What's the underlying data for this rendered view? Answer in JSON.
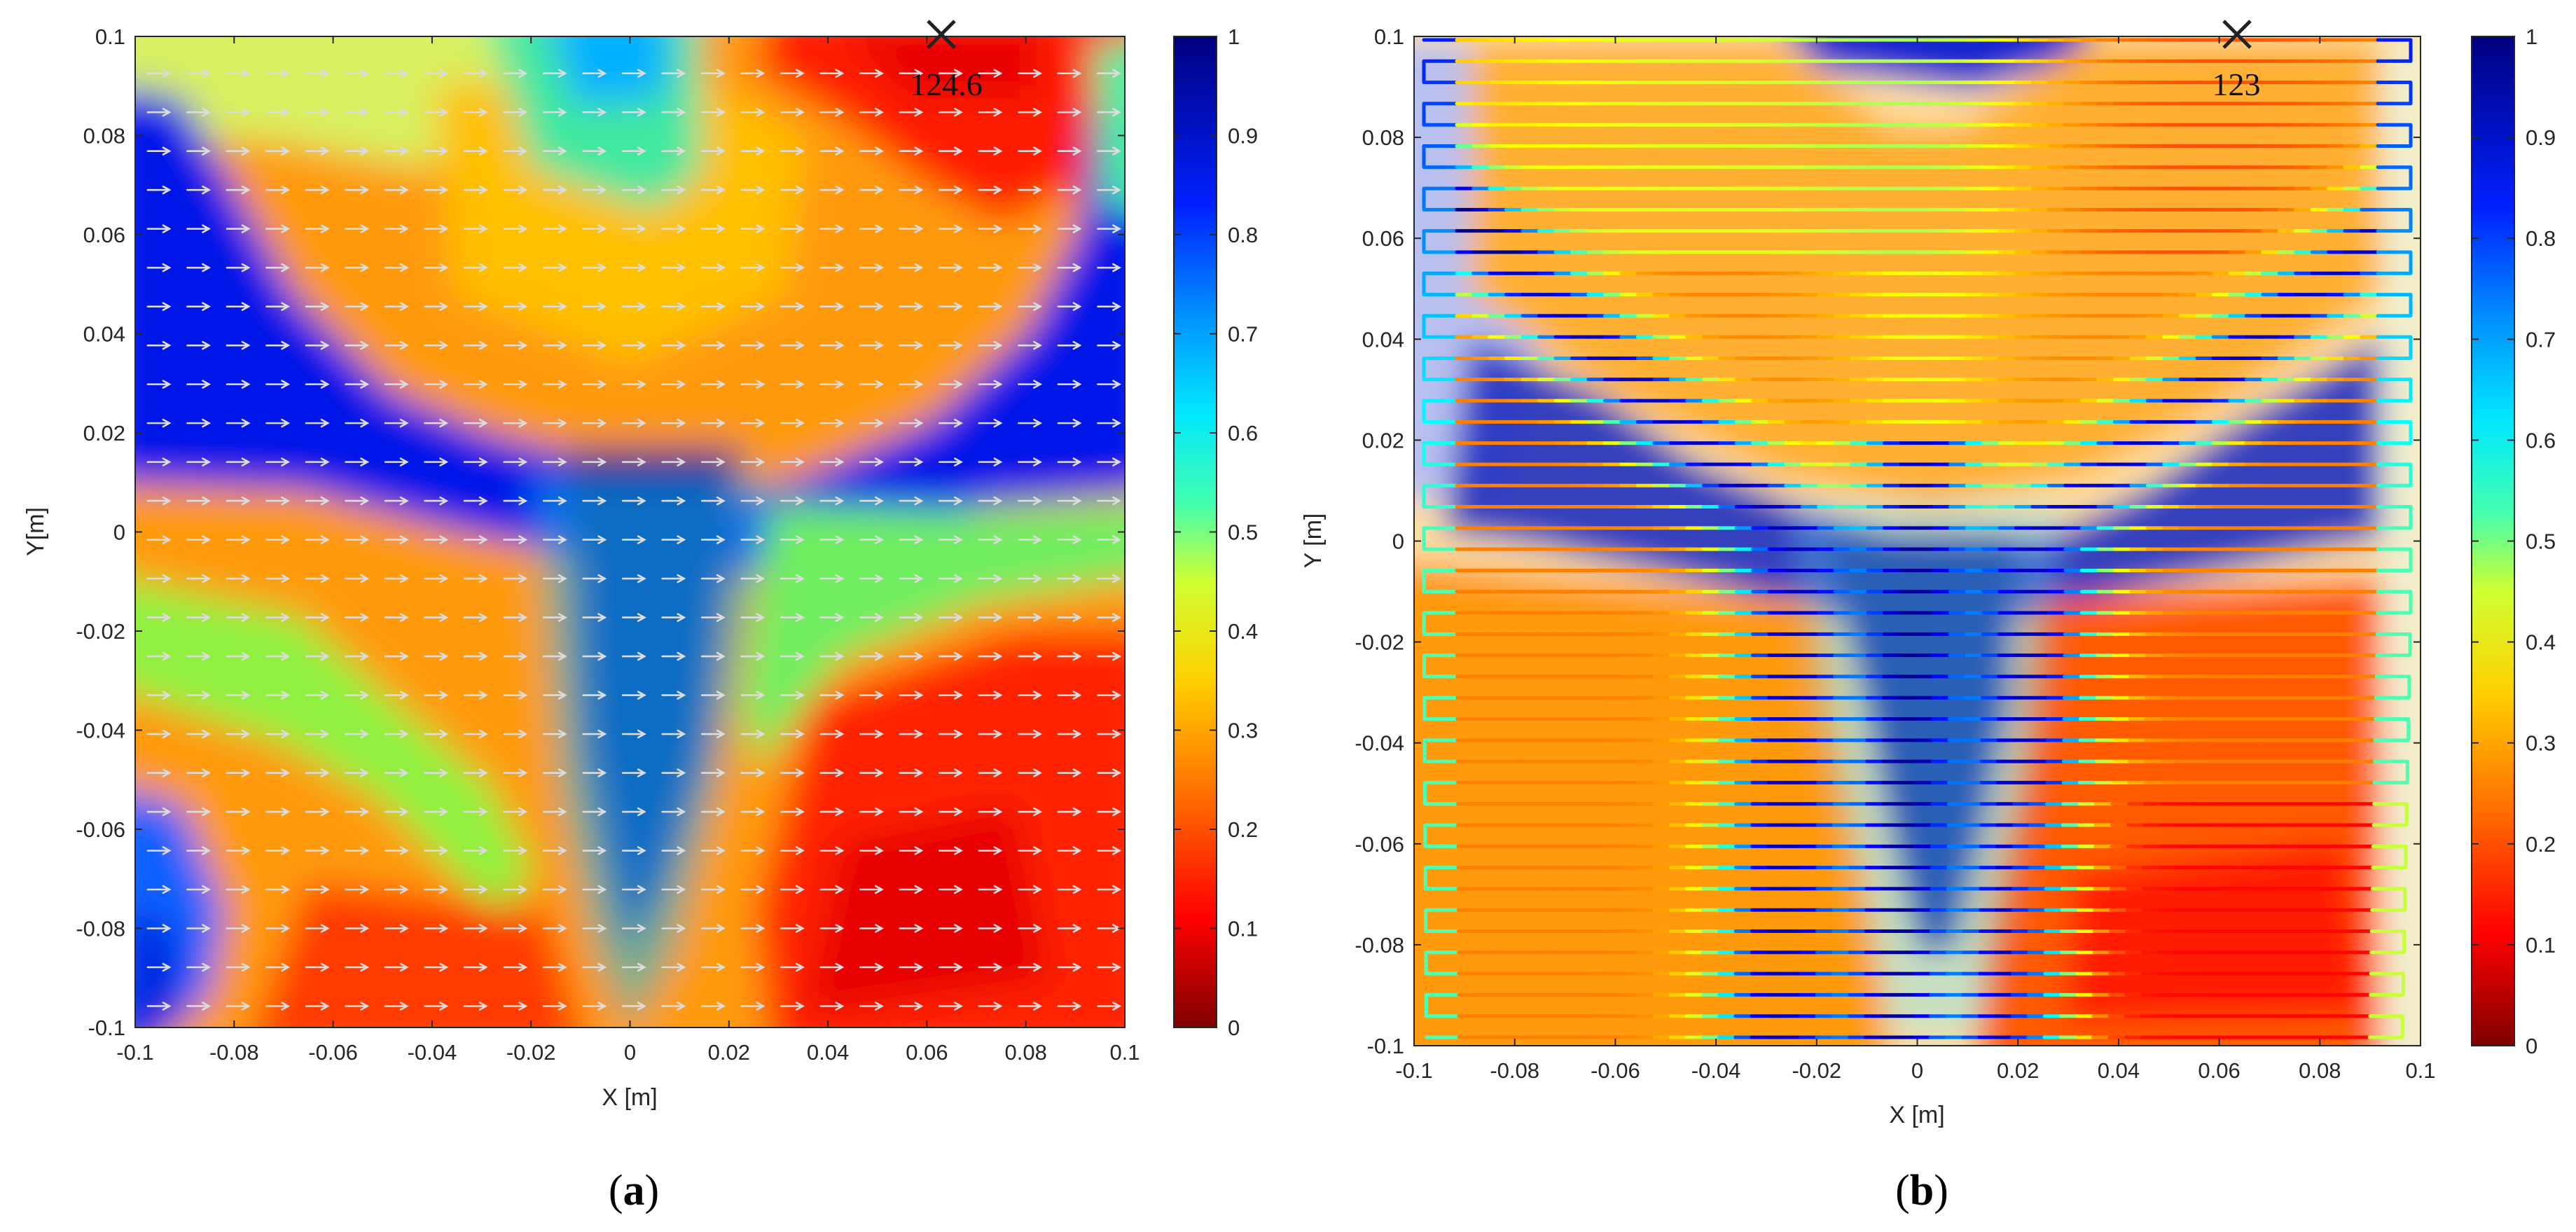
{
  "chart_data": [
    {
      "type": "heatmap",
      "caption_label": "a",
      "xlabel": "X [m]",
      "ylabel": "Y[m]",
      "xlim": [
        -0.1,
        0.1
      ],
      "ylim": [
        -0.1,
        0.1
      ],
      "xticks": [
        "-0.1",
        "-0.08",
        "-0.06",
        "-0.04",
        "-0.02",
        "0",
        "0.02",
        "0.04",
        "0.06",
        "0.08",
        "0.1"
      ],
      "yticks": [
        "-0.1",
        "-0.08",
        "-0.06",
        "-0.04",
        "-0.02",
        "0",
        "0.02",
        "0.04",
        "0.06",
        "0.08",
        "0.1"
      ],
      "colorbar": {
        "range": [
          0,
          1
        ],
        "ticks": [
          "0",
          "0.1",
          "0.2",
          "0.3",
          "0.4",
          "0.5",
          "0.6",
          "0.7",
          "0.8",
          "0.9",
          "1"
        ],
        "colormap": "jet-reversed"
      },
      "overlay": "white arrows pointing +x on a regular grid (scan direction)",
      "arrow_rows": 25,
      "arrow_cols": 25,
      "marker": {
        "x": 0.063,
        "y": 0.1,
        "symbol": "x",
        "label": "124.6"
      }
    },
    {
      "type": "heatmap",
      "caption_label": "b",
      "xlabel": "X [m]",
      "ylabel": "Y [m]",
      "xlim": [
        -0.1,
        0.1
      ],
      "ylim": [
        -0.1,
        0.1
      ],
      "xticks": [
        "-0.1",
        "-0.08",
        "-0.06",
        "-0.04",
        "-0.02",
        "0",
        "0.02",
        "0.04",
        "0.06",
        "0.08",
        "0.1"
      ],
      "yticks": [
        "-0.1",
        "-0.08",
        "-0.06",
        "-0.04",
        "-0.02",
        "0",
        "0.02",
        "0.04",
        "0.06",
        "0.08",
        "0.1"
      ],
      "colorbar": {
        "range": [
          0,
          1
        ],
        "ticks": [
          "0",
          "0.1",
          "0.2",
          "0.3",
          "0.4",
          "0.5",
          "0.6",
          "0.7",
          "0.8",
          "0.9",
          "1"
        ],
        "colormap": "jet-reversed"
      },
      "overlay": "serpentine scan path coloured by the same scale",
      "scan_lines": 48,
      "marker": {
        "x": 0.063,
        "y": 0.1,
        "symbol": "x",
        "label": "123"
      }
    }
  ],
  "colors": {
    "jet_stops": [
      "#7f0000",
      "#ff0000",
      "#ff8000",
      "#ffff00",
      "#80ff80",
      "#00ffff",
      "#0080ff",
      "#0000ff",
      "#00008f"
    ],
    "axis": "#262626",
    "arrow": "#dcdcdc"
  }
}
